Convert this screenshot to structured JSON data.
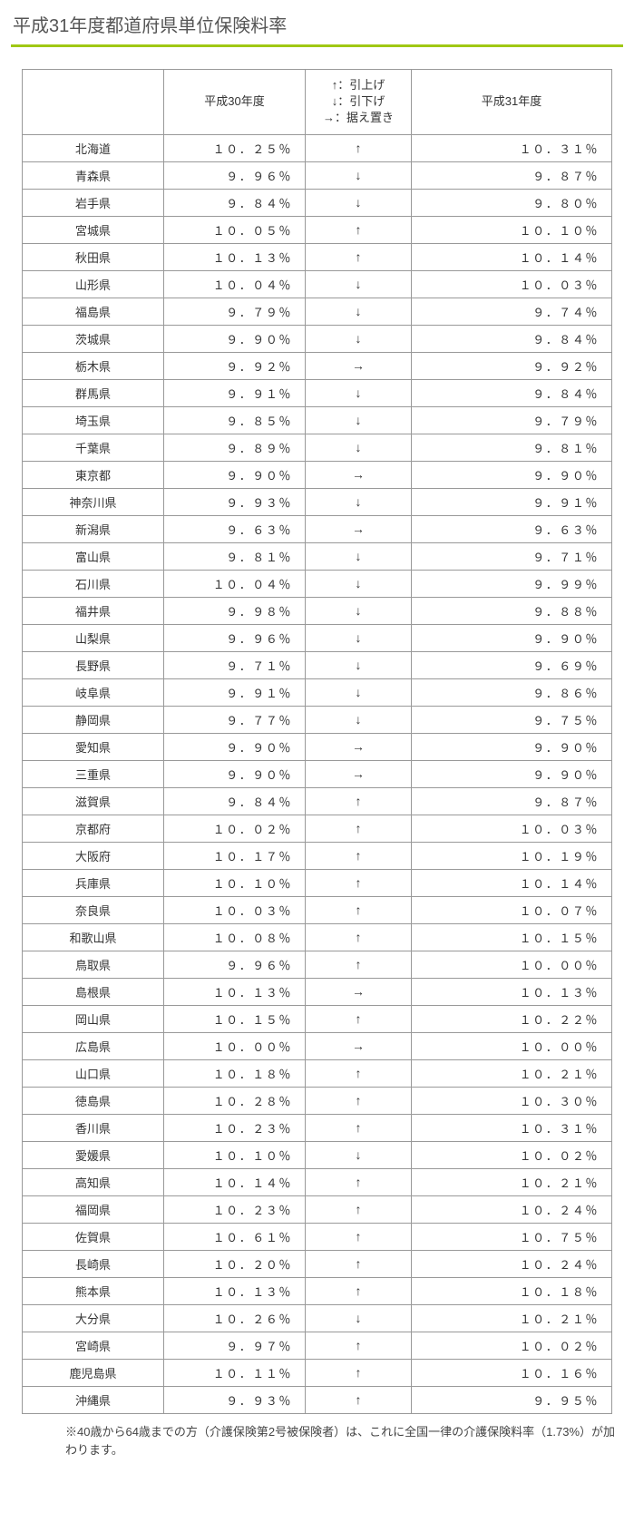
{
  "title": "平成31年度都道府県単位保険料率",
  "table": {
    "headers": {
      "name": "",
      "h30": "平成30年度",
      "arrow": "↑：引上げ\n↓：引下げ\n→：据え置き",
      "h31": "平成31年度"
    },
    "rows": [
      {
        "name": "北海道",
        "h30": "１０．２５％",
        "arrow": "↑",
        "h31": "１０．３１％"
      },
      {
        "name": "青森県",
        "h30": "９．９６％",
        "arrow": "↓",
        "h31": "９．８７％"
      },
      {
        "name": "岩手県",
        "h30": "９．８４％",
        "arrow": "↓",
        "h31": "９．８０％"
      },
      {
        "name": "宮城県",
        "h30": "１０．０５％",
        "arrow": "↑",
        "h31": "１０．１０％"
      },
      {
        "name": "秋田県",
        "h30": "１０．１３％",
        "arrow": "↑",
        "h31": "１０．１４％"
      },
      {
        "name": "山形県",
        "h30": "１０．０４％",
        "arrow": "↓",
        "h31": "１０．０３％"
      },
      {
        "name": "福島県",
        "h30": "９．７９％",
        "arrow": "↓",
        "h31": "９．７４％"
      },
      {
        "name": "茨城県",
        "h30": "９．９０％",
        "arrow": "↓",
        "h31": "９．８４％"
      },
      {
        "name": "栃木県",
        "h30": "９．９２％",
        "arrow": "→",
        "h31": "９．９２％"
      },
      {
        "name": "群馬県",
        "h30": "９．９１％",
        "arrow": "↓",
        "h31": "９．８４％"
      },
      {
        "name": "埼玉県",
        "h30": "９．８５％",
        "arrow": "↓",
        "h31": "９．７９％"
      },
      {
        "name": "千葉県",
        "h30": "９．８９％",
        "arrow": "↓",
        "h31": "９．８１％"
      },
      {
        "name": "東京都",
        "h30": "９．９０％",
        "arrow": "→",
        "h31": "９．９０％"
      },
      {
        "name": "神奈川県",
        "h30": "９．９３％",
        "arrow": "↓",
        "h31": "９．９１％"
      },
      {
        "name": "新潟県",
        "h30": "９．６３％",
        "arrow": "→",
        "h31": "９．６３％"
      },
      {
        "name": "富山県",
        "h30": "９．８１％",
        "arrow": "↓",
        "h31": "９．７１％"
      },
      {
        "name": "石川県",
        "h30": "１０．０４％",
        "arrow": "↓",
        "h31": "９．９９％"
      },
      {
        "name": "福井県",
        "h30": "９．９８％",
        "arrow": "↓",
        "h31": "９．８８％"
      },
      {
        "name": "山梨県",
        "h30": "９．９６％",
        "arrow": "↓",
        "h31": "９．９０％"
      },
      {
        "name": "長野県",
        "h30": "９．７１％",
        "arrow": "↓",
        "h31": "９．６９％"
      },
      {
        "name": "岐阜県",
        "h30": "９．９１％",
        "arrow": "↓",
        "h31": "９．８６％"
      },
      {
        "name": "静岡県",
        "h30": "９．７７％",
        "arrow": "↓",
        "h31": "９．７５％"
      },
      {
        "name": "愛知県",
        "h30": "９．９０％",
        "arrow": "→",
        "h31": "９．９０％"
      },
      {
        "name": "三重県",
        "h30": "９．９０％",
        "arrow": "→",
        "h31": "９．９０％"
      },
      {
        "name": "滋賀県",
        "h30": "９．８４％",
        "arrow": "↑",
        "h31": "９．８７％"
      },
      {
        "name": "京都府",
        "h30": "１０．０２％",
        "arrow": "↑",
        "h31": "１０．０３％"
      },
      {
        "name": "大阪府",
        "h30": "１０．１７％",
        "arrow": "↑",
        "h31": "１０．１９％"
      },
      {
        "name": "兵庫県",
        "h30": "１０．１０％",
        "arrow": "↑",
        "h31": "１０．１４％"
      },
      {
        "name": "奈良県",
        "h30": "１０．０３％",
        "arrow": "↑",
        "h31": "１０．０７％"
      },
      {
        "name": "和歌山県",
        "h30": "１０．０８％",
        "arrow": "↑",
        "h31": "１０．１５％"
      },
      {
        "name": "鳥取県",
        "h30": "９．９６％",
        "arrow": "↑",
        "h31": "１０．００％"
      },
      {
        "name": "島根県",
        "h30": "１０．１３％",
        "arrow": "→",
        "h31": "１０．１３％"
      },
      {
        "name": "岡山県",
        "h30": "１０．１５％",
        "arrow": "↑",
        "h31": "１０．２２％"
      },
      {
        "name": "広島県",
        "h30": "１０．００％",
        "arrow": "→",
        "h31": "１０．００％"
      },
      {
        "name": "山口県",
        "h30": "１０．１８％",
        "arrow": "↑",
        "h31": "１０．２１％"
      },
      {
        "name": "徳島県",
        "h30": "１０．２８％",
        "arrow": "↑",
        "h31": "１０．３０％"
      },
      {
        "name": "香川県",
        "h30": "１０．２３％",
        "arrow": "↑",
        "h31": "１０．３１％"
      },
      {
        "name": "愛媛県",
        "h30": "１０．１０％",
        "arrow": "↓",
        "h31": "１０．０２％"
      },
      {
        "name": "高知県",
        "h30": "１０．１４％",
        "arrow": "↑",
        "h31": "１０．２１％"
      },
      {
        "name": "福岡県",
        "h30": "１０．２３％",
        "arrow": "↑",
        "h31": "１０．２４％"
      },
      {
        "name": "佐賀県",
        "h30": "１０．６１％",
        "arrow": "↑",
        "h31": "１０．７５％"
      },
      {
        "name": "長崎県",
        "h30": "１０．２０％",
        "arrow": "↑",
        "h31": "１０．２４％"
      },
      {
        "name": "熊本県",
        "h30": "１０．１３％",
        "arrow": "↑",
        "h31": "１０．１８％"
      },
      {
        "name": "大分県",
        "h30": "１０．２６％",
        "arrow": "↓",
        "h31": "１０．２１％"
      },
      {
        "name": "宮崎県",
        "h30": "９．９７％",
        "arrow": "↑",
        "h31": "１０．０２％"
      },
      {
        "name": "鹿児島県",
        "h30": "１０．１１％",
        "arrow": "↑",
        "h31": "１０．１６％"
      },
      {
        "name": "沖縄県",
        "h30": "９．９３％",
        "arrow": "↑",
        "h31": "９．９５％"
      }
    ]
  },
  "footnote": "※40歳から64歳までの方（介護保険第2号被保険者）は、これに全国一律の介護保険料率（1.73%）が加わります。"
}
